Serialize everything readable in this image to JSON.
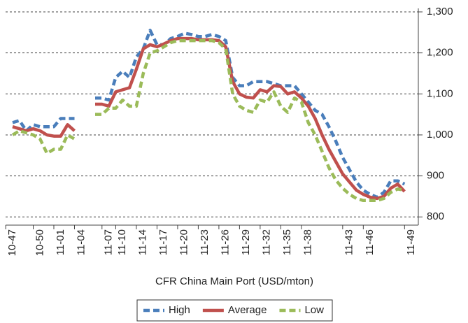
{
  "chart_data": {
    "type": "line",
    "x_label": "CFR China Main Port (USD/mton)",
    "categories": [
      "10-47",
      null,
      null,
      null,
      "10-50",
      null,
      null,
      "11-01",
      null,
      null,
      "11-04",
      null,
      null,
      null,
      "11-07",
      null,
      "11-10",
      null,
      null,
      "11-14",
      null,
      null,
      "11-17",
      null,
      null,
      "11-20",
      null,
      null,
      "11-23",
      null,
      null,
      "11-26",
      null,
      null,
      "11-29",
      null,
      null,
      "11-32",
      null,
      null,
      "11-35",
      null,
      null,
      "11-38",
      null,
      null,
      null,
      null,
      null,
      "11-43",
      null,
      null,
      "11-46",
      null,
      null,
      null,
      null,
      null,
      "11-49"
    ],
    "series": [
      {
        "name": "High",
        "color": "#4a7ebb",
        "dash": true,
        "values": [
          1030,
          1035,
          1010,
          1025,
          1020,
          1020,
          1020,
          1040,
          1040,
          1040,
          null,
          null,
          1090,
          1090,
          1085,
          1140,
          1155,
          1140,
          1190,
          1210,
          1255,
          1220,
          1220,
          1235,
          1240,
          1248,
          1245,
          1240,
          1240,
          1245,
          1240,
          1230,
          1140,
          1120,
          1120,
          1130,
          1130,
          1130,
          1125,
          1120,
          1120,
          1120,
          1100,
          1080,
          1060,
          1050,
          1020,
          985,
          945,
          915,
          885,
          865,
          855,
          848,
          860,
          888,
          888,
          880,
          null
        ]
      },
      {
        "name": "Average",
        "color": "#c0504d",
        "dash": false,
        "values": [
          1020,
          1015,
          1010,
          1015,
          1010,
          1000,
          997,
          997,
          1025,
          1010,
          null,
          null,
          1075,
          1075,
          1070,
          1105,
          1110,
          1115,
          1160,
          1210,
          1220,
          1215,
          1222,
          1230,
          1235,
          1235,
          1235,
          1232,
          1232,
          1232,
          1230,
          1215,
          1130,
          1100,
          1092,
          1090,
          1110,
          1105,
          1120,
          1118,
          1100,
          1105,
          1090,
          1070,
          1040,
          1000,
          965,
          935,
          905,
          885,
          865,
          855,
          848,
          845,
          850,
          870,
          880,
          862,
          null
        ]
      },
      {
        "name": "Low",
        "color": "#9bbb59",
        "dash": true,
        "values": [
          1000,
          1010,
          1005,
          1000,
          990,
          955,
          965,
          965,
          1000,
          990,
          null,
          null,
          1050,
          1050,
          1065,
          1065,
          1085,
          1070,
          1070,
          1150,
          1200,
          1205,
          1215,
          1225,
          1230,
          1230,
          1230,
          1230,
          1230,
          1230,
          1225,
          1210,
          1100,
          1070,
          1060,
          1055,
          1085,
          1080,
          1105,
          1070,
          1055,
          1090,
          1080,
          1030,
          1000,
          960,
          920,
          890,
          870,
          855,
          845,
          840,
          840,
          840,
          845,
          860,
          868,
          865,
          null
        ]
      }
    ],
    "ylim": [
      780,
      1300
    ],
    "yticks": [
      800,
      900,
      1000,
      1100,
      1200,
      {
        "value": 1300,
        "label": "1,300"
      }
    ],
    "ytick_labels": [
      "800",
      "900",
      "1,000",
      "1,100",
      "1,200"
    ],
    "grid": true
  }
}
